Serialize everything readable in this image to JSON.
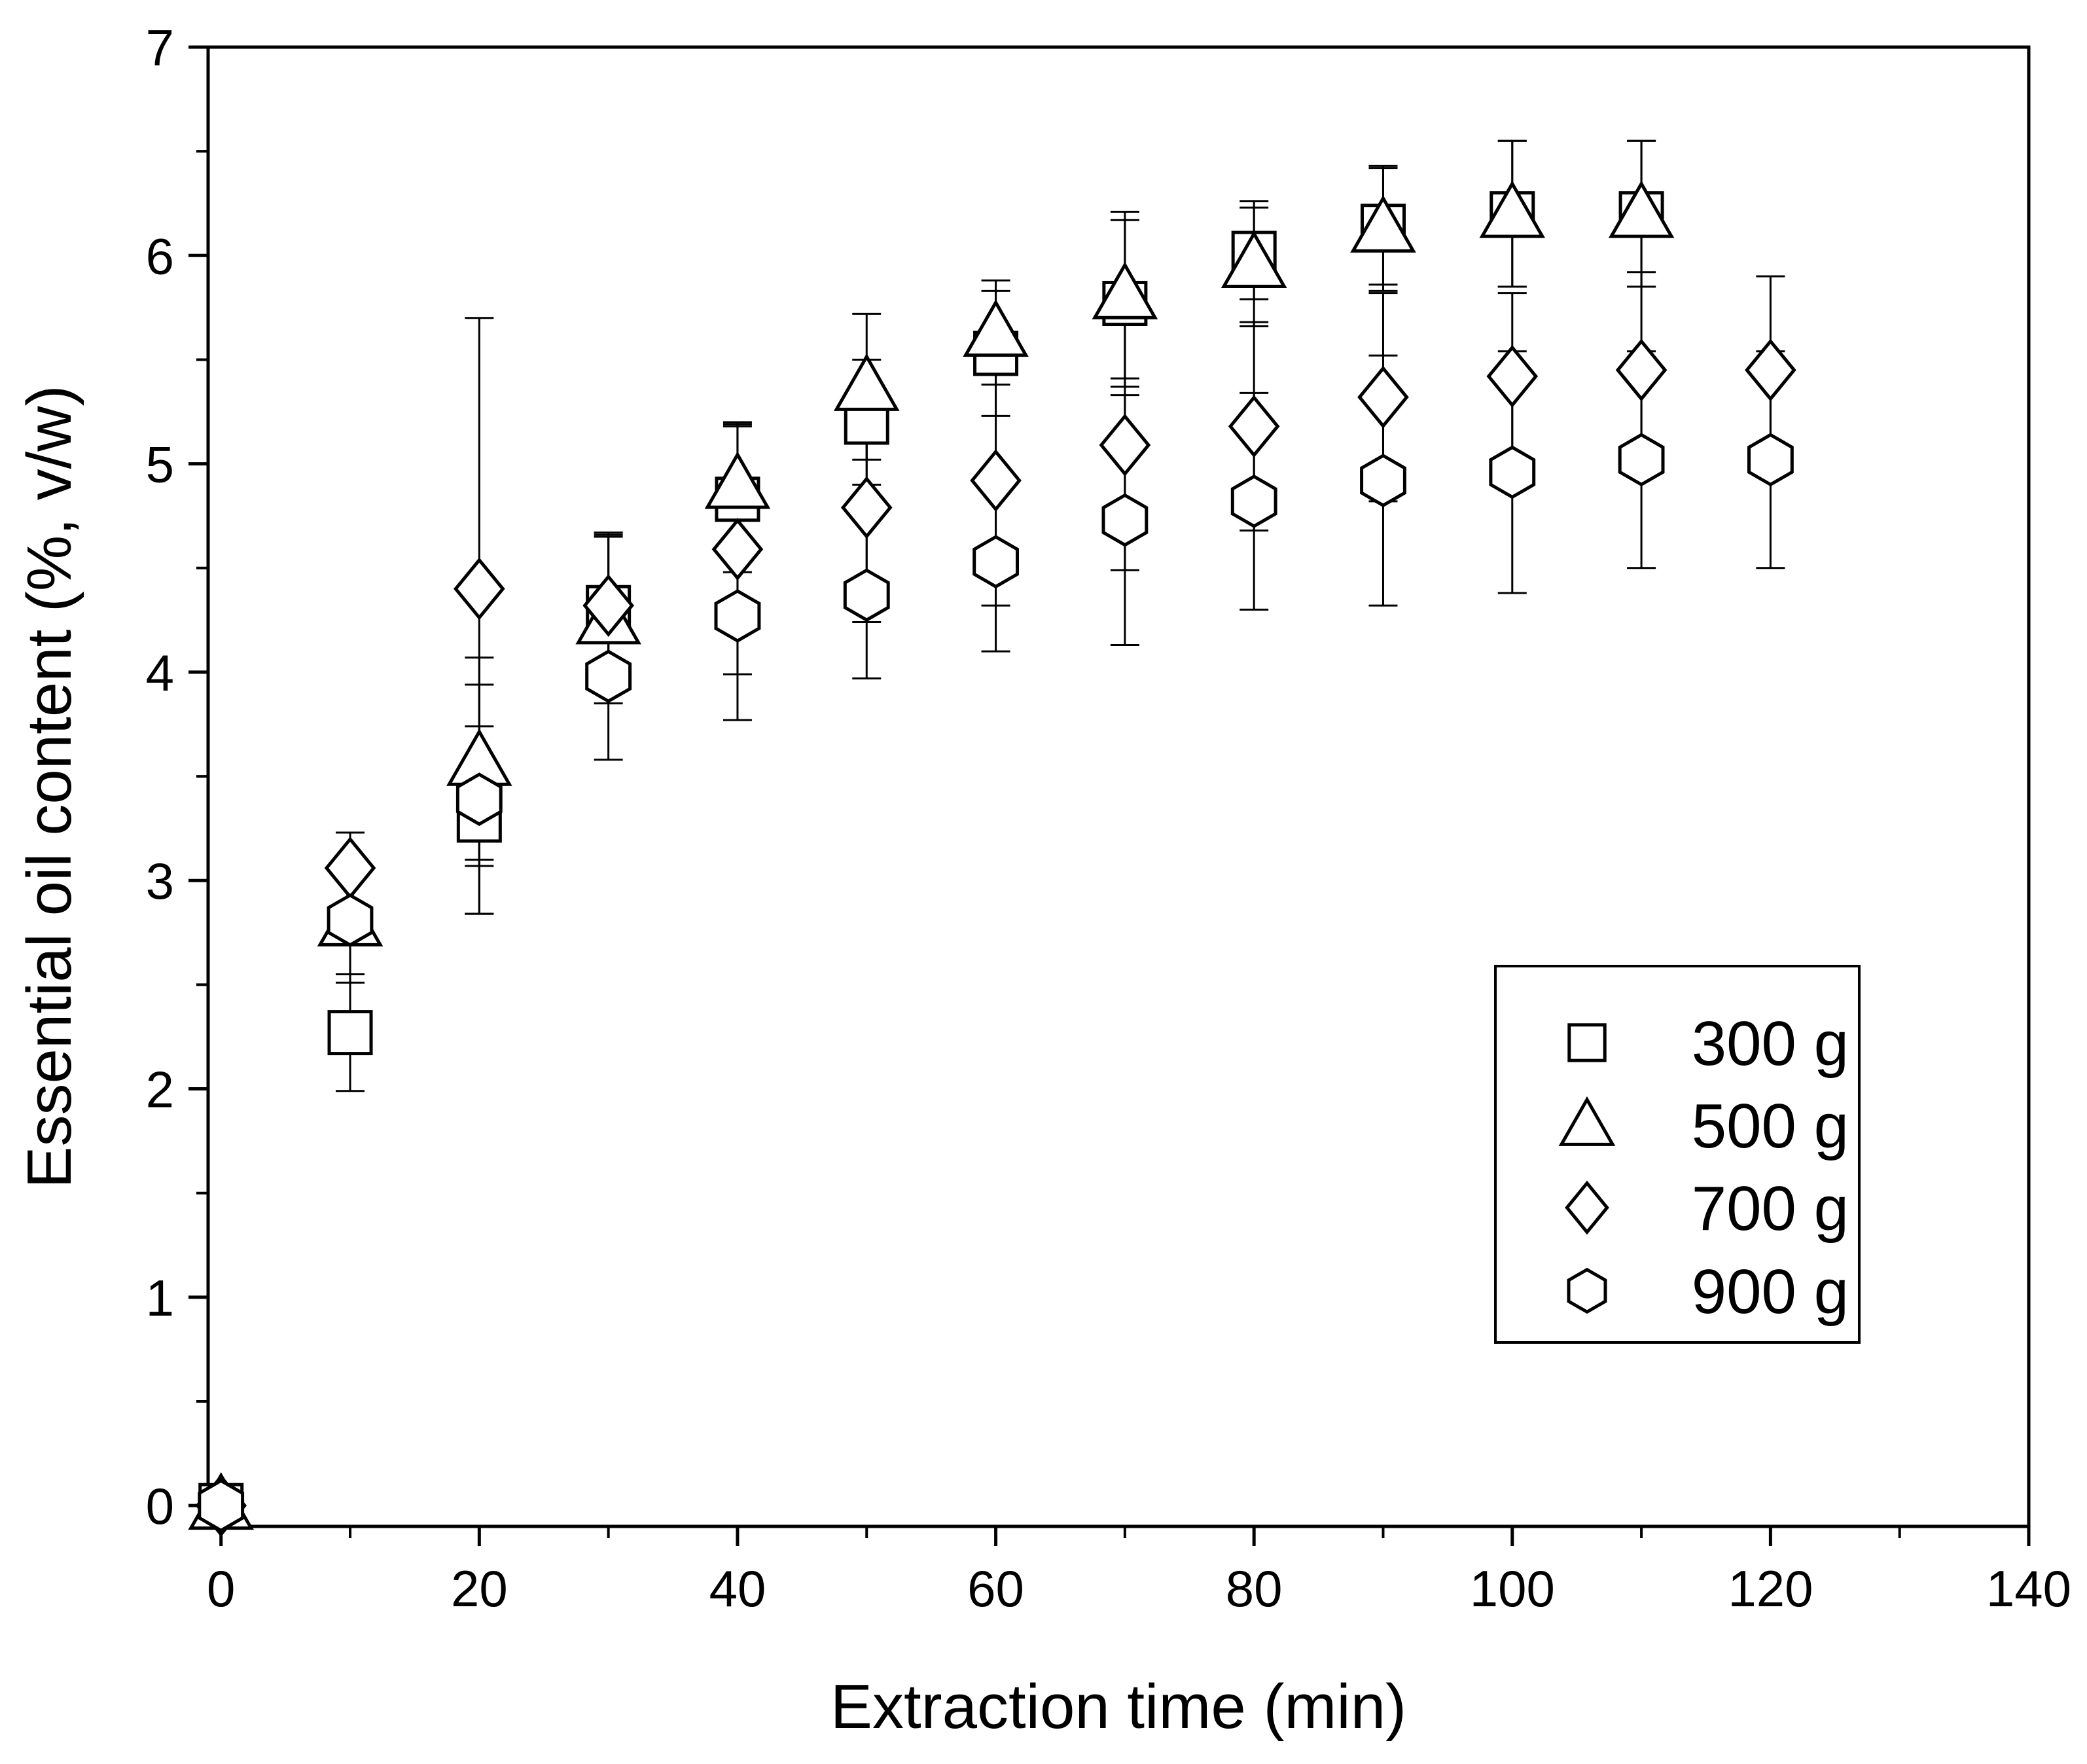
{
  "chart_data": {
    "type": "scatter",
    "title": "",
    "xlabel": "Extraction time (min)",
    "ylabel": "Essential oil content (%, v/w)",
    "xlim": [
      -1,
      140
    ],
    "ylim": [
      -0.1,
      7
    ],
    "x_ticks": [
      0,
      20,
      40,
      60,
      80,
      100,
      120,
      140
    ],
    "x_tick_labels": [
      "0",
      "20",
      "40",
      "60",
      "80",
      "100",
      "120",
      "140"
    ],
    "y_ticks": [
      0,
      1,
      2,
      3,
      4,
      5,
      6,
      7
    ],
    "y_tick_labels": [
      "0",
      "1",
      "2",
      "3",
      "4",
      "5",
      "6",
      "7"
    ],
    "x_minor_step": 10,
    "y_minor_step": 0.5,
    "grid": false,
    "legend_position": "bottom-right",
    "series": [
      {
        "name": "300 g",
        "label": "300 g",
        "marker": "square",
        "x": [
          0,
          10,
          20,
          30,
          40,
          50,
          60,
          70,
          80,
          90,
          100,
          110
        ],
        "y": [
          0,
          2.27,
          3.29,
          4.31,
          4.83,
          5.2,
          5.53,
          5.77,
          6.01,
          6.14,
          6.2,
          6.2
        ],
        "err": [
          0,
          0.28,
          0.45,
          0.35,
          0.35,
          0.3,
          0.3,
          0.4,
          0.22,
          0.28,
          0.35,
          0.35
        ]
      },
      {
        "name": "500 g",
        "label": "500 g",
        "marker": "triangle",
        "x": [
          0,
          10,
          20,
          30,
          40,
          50,
          60,
          70,
          80,
          90,
          100,
          110
        ],
        "y": [
          0,
          2.8,
          3.57,
          4.25,
          4.9,
          5.37,
          5.63,
          5.81,
          5.96,
          6.13,
          6.2,
          6.2
        ],
        "err": [
          0,
          0.25,
          0.5,
          0.4,
          0.3,
          0.35,
          0.25,
          0.4,
          0.3,
          0.3,
          0.35,
          0.35
        ]
      },
      {
        "name": "700 g",
        "label": "700 g",
        "marker": "diamond",
        "x": [
          0,
          10,
          20,
          30,
          40,
          50,
          60,
          70,
          80,
          90,
          100,
          110,
          120
        ],
        "y": [
          0,
          3.06,
          4.4,
          4.32,
          4.59,
          4.79,
          4.92,
          5.09,
          5.18,
          5.32,
          5.42,
          5.45,
          5.45
        ],
        "err": [
          0,
          0.17,
          1.3,
          0.35,
          0.6,
          0.55,
          0.6,
          0.6,
          0.5,
          0.5,
          0.4,
          0.47,
          0.45
        ]
      },
      {
        "name": "900 g",
        "label": "900 g",
        "marker": "hexagon",
        "x": [
          0,
          10,
          20,
          30,
          40,
          50,
          60,
          70,
          80,
          90,
          100,
          110,
          120
        ],
        "y": [
          0,
          2.81,
          3.39,
          3.98,
          4.27,
          4.37,
          4.53,
          4.73,
          4.82,
          4.92,
          4.96,
          5.02,
          5.02
        ],
        "err": [
          0,
          0.3,
          0.55,
          0.4,
          0.5,
          0.4,
          0.43,
          0.6,
          0.52,
          0.6,
          0.58,
          0.52,
          0.52
        ]
      }
    ]
  }
}
